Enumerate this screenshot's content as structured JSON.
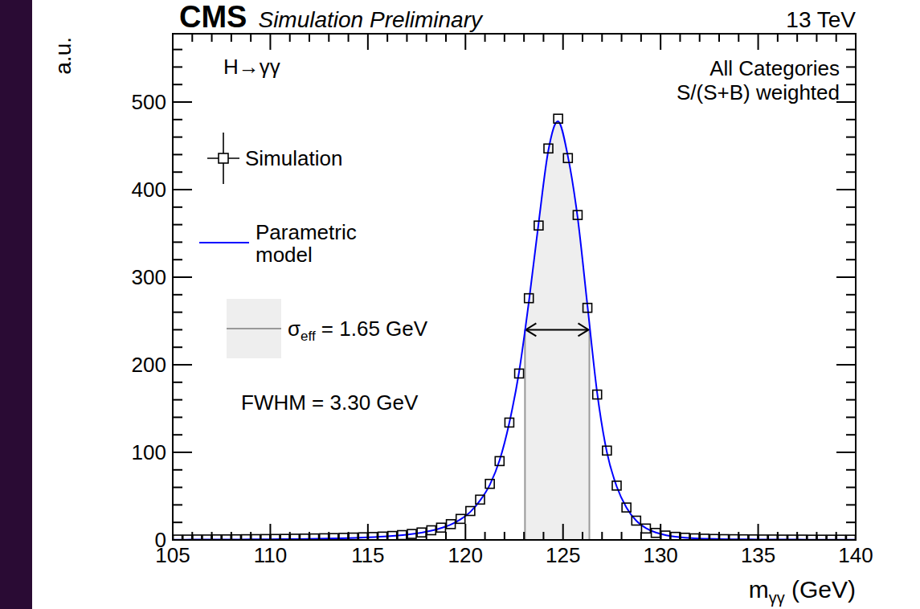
{
  "chart_data": {
    "type": "scatter",
    "title": "CMS",
    "subtitle": "Simulation Preliminary",
    "energy_label": "13 TeV",
    "annotations": [
      "H→γγ",
      "All Categories",
      "S/(S+B) weighted",
      "FWHM = 3.30 GeV"
    ],
    "ylabel": "a.u.",
    "xlabel": [
      "m",
      "γγ",
      " (GeV)"
    ],
    "xlim": [
      105,
      140
    ],
    "xticks": [
      105,
      110,
      115,
      120,
      125,
      130,
      135,
      140
    ],
    "ylim": [
      0,
      578
    ],
    "yticks": [
      0,
      100,
      200,
      300,
      400,
      500
    ],
    "legend": "upper left",
    "series": [
      {
        "name": "Simulation",
        "type": "scatter",
        "marker": "square",
        "color": "#000000",
        "x": [
          105.25,
          105.75,
          106.25,
          106.75,
          107.25,
          107.75,
          108.25,
          108.75,
          109.25,
          109.75,
          110.25,
          110.75,
          111.25,
          111.75,
          112.25,
          112.75,
          113.25,
          113.75,
          114.25,
          114.75,
          115.25,
          115.75,
          116.25,
          116.75,
          117.25,
          117.75,
          118.25,
          118.75,
          119.25,
          119.75,
          120.25,
          120.75,
          121.25,
          121.75,
          122.25,
          122.75,
          123.25,
          123.75,
          124.25,
          124.75,
          125.25,
          125.75,
          126.25,
          126.75,
          127.25,
          127.75,
          128.25,
          128.75,
          129.25,
          129.75,
          130.25,
          130.75,
          131.25,
          131.75,
          132.25,
          132.75,
          133.25,
          133.75,
          134.25,
          134.75,
          135.25,
          135.75,
          136.25,
          136.75,
          137.25,
          137.75,
          138.25,
          138.75,
          139.25,
          139.75
        ],
        "values": [
          0.4,
          0.4,
          0.5,
          0.5,
          0.6,
          0.6,
          0.7,
          0.8,
          0.9,
          1,
          1.1,
          1.2,
          1.4,
          1.5,
          1.7,
          1.9,
          2.1,
          2.4,
          2.7,
          3,
          3.3,
          3.8,
          4.5,
          5.5,
          6.8,
          8.5,
          11,
          14,
          18,
          24,
          33,
          46,
          64,
          90,
          134,
          190,
          276,
          359,
          447,
          481,
          436,
          371,
          265,
          166,
          102,
          62,
          37,
          22,
          13,
          8,
          5,
          3.5,
          2.5,
          1.8,
          1.4,
          1.1,
          0.9,
          0.8,
          0.7,
          0.6,
          0.5,
          0.5,
          0.4,
          0.4,
          0.4,
          0.3,
          0.3,
          0.3,
          0.3,
          0.3
        ]
      },
      {
        "name": "Parametric model",
        "type": "line",
        "line_style": "solid",
        "color": "#0000ff",
        "x": [
          105,
          106,
          107,
          108,
          109,
          110,
          111,
          112,
          113,
          114,
          115,
          116,
          117,
          117.75,
          118.25,
          118.75,
          119.25,
          119.75,
          120.25,
          120.75,
          121.25,
          121.75,
          122.25,
          122.75,
          123.25,
          123.75,
          124.25,
          124.75,
          125.25,
          125.75,
          126.25,
          126.75,
          127.25,
          127.75,
          128.25,
          128.75,
          129.25,
          129.75,
          130.25,
          130.75,
          131.75,
          133,
          134,
          135,
          136,
          137,
          138,
          139,
          140
        ],
        "values": [
          0.3,
          0.35,
          0.4,
          0.5,
          0.6,
          0.75,
          0.9,
          1.1,
          1.5,
          2,
          2.9,
          4.1,
          6,
          8.3,
          10.5,
          13.5,
          17.5,
          23.5,
          32,
          45,
          63,
          91,
          134,
          192,
          272,
          362,
          445,
          478,
          438,
          368,
          268,
          168,
          100,
          61,
          37,
          22,
          13.5,
          8.5,
          5.5,
          3.6,
          1.8,
          1,
          0.7,
          0.5,
          0.4,
          0.35,
          0.3,
          0.3,
          0.3
        ]
      }
    ],
    "sigma_eff": {
      "label": [
        "σ",
        "eff",
        " = 1.65 GeV"
      ],
      "band": [
        123.05,
        126.35
      ],
      "arrow_y": 240
    }
  }
}
